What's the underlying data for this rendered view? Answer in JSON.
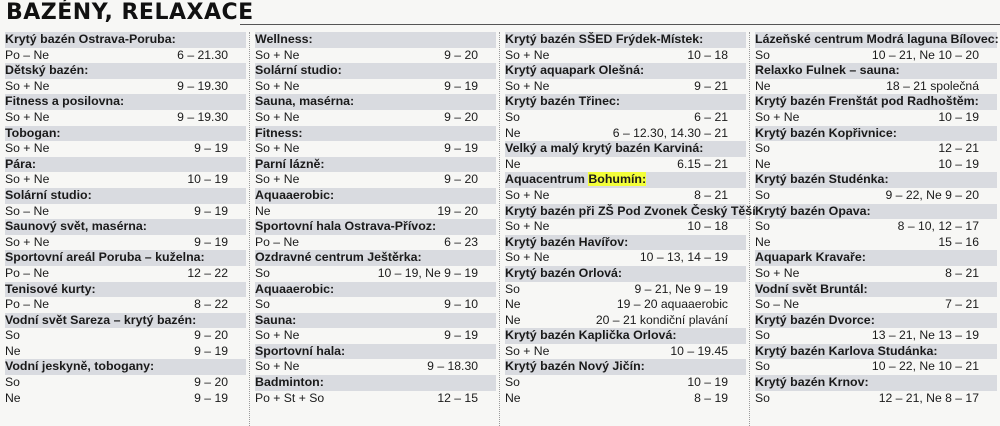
{
  "title": "BAZÉNY, RELAXACE",
  "columns": [
    [
      {
        "type": "head",
        "text": "Krytý bazén Ostrava-Poruba:"
      },
      {
        "type": "row",
        "day": "Po – Ne",
        "time": "6 – 21.30"
      },
      {
        "type": "head",
        "text": "Dětský bazén:"
      },
      {
        "type": "row",
        "day": "So + Ne",
        "time": "9 – 19.30"
      },
      {
        "type": "head",
        "text": "Fitness a posilovna:"
      },
      {
        "type": "row",
        "day": "So + Ne",
        "time": "9 – 19.30"
      },
      {
        "type": "head",
        "text": "Tobogan:"
      },
      {
        "type": "row",
        "day": "So + Ne",
        "time": "9 – 19"
      },
      {
        "type": "head",
        "text": "Pára:"
      },
      {
        "type": "row",
        "day": "So + Ne",
        "time": "10 – 19"
      },
      {
        "type": "head",
        "text": "Solární studio:"
      },
      {
        "type": "row",
        "day": "So – Ne",
        "time": "9 – 19"
      },
      {
        "type": "head",
        "text": "Saunový svět, masérna:"
      },
      {
        "type": "row",
        "day": "So + Ne",
        "time": "9 – 19"
      },
      {
        "type": "head",
        "text": "Sportovní areál Poruba – kuželna:"
      },
      {
        "type": "row",
        "day": "Po – Ne",
        "time": "12 – 22"
      },
      {
        "type": "head",
        "text": "Tenisové kurty:"
      },
      {
        "type": "row",
        "day": "Po – Ne",
        "time": "8 – 22"
      },
      {
        "type": "head",
        "text": "Vodní svět Sareza – krytý bazén:"
      },
      {
        "type": "row",
        "day": "So",
        "time": "9 – 20"
      },
      {
        "type": "row",
        "day": "Ne",
        "time": "9 – 19"
      },
      {
        "type": "head",
        "text": "Vodní jeskyně, tobogany:"
      },
      {
        "type": "row",
        "day": "So",
        "time": "9 – 20"
      },
      {
        "type": "row",
        "day": "Ne",
        "time": "9 – 19"
      }
    ],
    [
      {
        "type": "head",
        "text": "Wellness:"
      },
      {
        "type": "row",
        "day": "So + Ne",
        "time": "9 – 20"
      },
      {
        "type": "head",
        "text": "Solární studio:"
      },
      {
        "type": "row",
        "day": "So + Ne",
        "time": "9 – 19"
      },
      {
        "type": "head",
        "text": "Sauna, masérna:"
      },
      {
        "type": "row",
        "day": "So + Ne",
        "time": "9 – 20"
      },
      {
        "type": "head",
        "text": "Fitness:"
      },
      {
        "type": "row",
        "day": "So + Ne",
        "time": "9 – 19"
      },
      {
        "type": "head",
        "text": "Parní lázně:"
      },
      {
        "type": "row",
        "day": "So + Ne",
        "time": "9 – 20"
      },
      {
        "type": "head",
        "text": "Aquaaerobic:"
      },
      {
        "type": "row",
        "day": "Ne",
        "time": "19 – 20"
      },
      {
        "type": "head",
        "text": "Sportovní hala Ostrava-Přívoz:"
      },
      {
        "type": "row",
        "day": "Po – Ne",
        "time": "6 – 23"
      },
      {
        "type": "head",
        "text": "Ozdravné centrum Ještěrka:"
      },
      {
        "type": "row",
        "day": "So",
        "time": "10 – 19, Ne 9 – 19"
      },
      {
        "type": "head",
        "text": "Aquaaerobic:"
      },
      {
        "type": "row",
        "day": "So",
        "time": "9 – 10"
      },
      {
        "type": "head",
        "text": "Sauna:"
      },
      {
        "type": "row",
        "day": "So + Ne",
        "time": "9 – 19"
      },
      {
        "type": "head",
        "text": "Sportovní hala:"
      },
      {
        "type": "row",
        "day": "So + Ne",
        "time": "9 – 18.30"
      },
      {
        "type": "head",
        "text": "Badminton:"
      },
      {
        "type": "row",
        "day": "Po + St + So",
        "time": "12 – 15"
      }
    ],
    [
      {
        "type": "head",
        "text": "Krytý bazén SŠED Frýdek-Místek:"
      },
      {
        "type": "row",
        "day": "So + Ne",
        "time": "10 – 18"
      },
      {
        "type": "head",
        "text": "Krytý aquapark Olešná:"
      },
      {
        "type": "row",
        "day": "So + Ne",
        "time": "9 – 21"
      },
      {
        "type": "head",
        "text": "Krytý bazén Třinec:"
      },
      {
        "type": "row",
        "day": "So",
        "time": "6 – 21"
      },
      {
        "type": "row",
        "day": "Ne",
        "time": "6 – 12.30, 14.30 – 21"
      },
      {
        "type": "head",
        "text": "Velký a malý krytý bazén Karviná:"
      },
      {
        "type": "row",
        "day": "Ne",
        "time": "6.15 – 21"
      },
      {
        "type": "headhl",
        "text": "Aquacentrum ",
        "hl": "Bohumín:"
      },
      {
        "type": "row",
        "day": "So + Ne",
        "time": "8 – 21"
      },
      {
        "type": "head",
        "text": "Krytý bazén při ZŠ Pod Zvonek Český Těšín:"
      },
      {
        "type": "row",
        "day": "So + Ne",
        "time": "10 – 18"
      },
      {
        "type": "head",
        "text": "Krytý bazén Havířov:"
      },
      {
        "type": "row",
        "day": "So + Ne",
        "time": "10 – 13, 14 – 19"
      },
      {
        "type": "head",
        "text": "Krytý bazén Orlová:"
      },
      {
        "type": "row",
        "day": "So",
        "time": "9 – 21, Ne 9 – 19"
      },
      {
        "type": "row",
        "day": "Ne",
        "time": "19 – 20 aquaaerobic"
      },
      {
        "type": "row",
        "day": "Ne",
        "time": "20 – 21 kondiční plavání"
      },
      {
        "type": "head",
        "text": "Krytý bazén Kaplička Orlová:"
      },
      {
        "type": "row",
        "day": "So + Ne",
        "time": "10 – 19.45"
      },
      {
        "type": "head",
        "text": "Krytý bazén Nový Jičín:"
      },
      {
        "type": "row",
        "day": "So",
        "time": "10 – 19"
      },
      {
        "type": "row",
        "day": "Ne",
        "time": "8 – 19"
      }
    ],
    [
      {
        "type": "head",
        "text": "Lázeňské centrum Modrá laguna Bílovec:"
      },
      {
        "type": "row",
        "day": "So",
        "time": "10 – 21, Ne 10 – 20"
      },
      {
        "type": "head",
        "text": "Relaxko Fulnek – sauna:"
      },
      {
        "type": "row",
        "day": "Ne",
        "time": "18 – 21 společná"
      },
      {
        "type": "head",
        "text": "Krytý bazén Frenštát pod Radhoštěm:"
      },
      {
        "type": "row",
        "day": "So + Ne",
        "time": "10 – 19"
      },
      {
        "type": "head",
        "text": "Krytý bazén Kopřivnice:"
      },
      {
        "type": "row",
        "day": "So",
        "time": "12 – 21"
      },
      {
        "type": "row",
        "day": "Ne",
        "time": "10 – 19"
      },
      {
        "type": "head",
        "text": "Krytý bazén Studénka:"
      },
      {
        "type": "row",
        "day": "So",
        "time": "9 – 22, Ne 9 – 20"
      },
      {
        "type": "head",
        "text": "Krytý bazén Opava:"
      },
      {
        "type": "row",
        "day": "So",
        "time": "8 – 10, 12 – 17"
      },
      {
        "type": "row",
        "day": "Ne",
        "time": "15 – 16"
      },
      {
        "type": "head",
        "text": "Aquapark Kravaře:"
      },
      {
        "type": "row",
        "day": "So + Ne",
        "time": "8 – 21"
      },
      {
        "type": "head",
        "text": "Vodní svět Bruntál:"
      },
      {
        "type": "row",
        "day": "So – Ne",
        "time": "7 – 21"
      },
      {
        "type": "head",
        "text": "Krytý bazén Dvorce:"
      },
      {
        "type": "row",
        "day": "So",
        "time": "13 – 21, Ne 13 – 19"
      },
      {
        "type": "head",
        "text": "Krytý bazén Karlova Studánka:"
      },
      {
        "type": "row",
        "day": "So",
        "time": "10 – 22, Ne 10 – 21"
      },
      {
        "type": "head",
        "text": "Krytý bazén Krnov:"
      },
      {
        "type": "row",
        "day": "So",
        "time": "12 – 21, Ne 8 – 17"
      }
    ]
  ]
}
